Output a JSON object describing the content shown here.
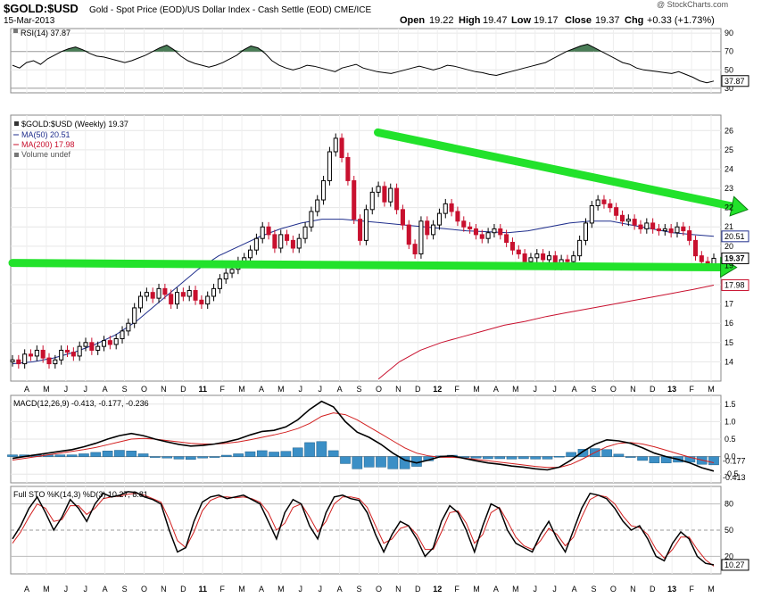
{
  "header": {
    "ticker": "$GOLD:$USD",
    "description": "Gold - Spot Price (EOD)/US Dollar Index - Cash Settle (EOD) CME/ICE",
    "date": "15-Mar-2013",
    "open_label": "Open",
    "open": "19.22",
    "high_label": "High",
    "high": "19.47",
    "low_label": "Low",
    "low": "19.17",
    "close_label": "Close",
    "close": "19.37",
    "chg_label": "Chg",
    "chg": "+0.33 (+1.73%)",
    "watermark": "@ StockCharts.com"
  },
  "colors": {
    "up": "#000000",
    "down": "#c8102e",
    "ma50": "#1f2e8c",
    "ma200": "#c8102e",
    "trend": "#22e22b",
    "rsi_fill": "#4a7d57",
    "macd_hist": "#3b8fc6",
    "sto_d": "#d21f1f"
  },
  "chart_data": [
    {
      "type": "line",
      "panel": "rsi",
      "legend": "RSI(14) 37.87",
      "current_label": "37.87",
      "y_ticks": [
        90,
        70,
        50,
        30
      ],
      "ylim": [
        25,
        95
      ],
      "values": [
        55,
        52,
        58,
        60,
        56,
        62,
        66,
        70,
        73,
        75,
        72,
        68,
        65,
        64,
        62,
        60,
        58,
        60,
        63,
        66,
        70,
        74,
        77,
        72,
        65,
        60,
        57,
        55,
        53,
        55,
        58,
        62,
        66,
        72,
        76,
        74,
        68,
        60,
        55,
        52,
        50,
        52,
        55,
        54,
        52,
        50,
        48,
        52,
        54,
        56,
        52,
        50,
        48,
        47,
        46,
        48,
        50,
        52,
        54,
        52,
        50,
        52,
        55,
        54,
        52,
        50,
        48,
        47,
        45,
        44,
        46,
        48,
        50,
        52,
        54,
        56,
        58,
        62,
        66,
        70,
        73,
        76,
        78,
        74,
        70,
        66,
        62,
        58,
        56,
        52,
        50,
        49,
        48,
        47,
        46,
        48,
        45,
        42,
        38,
        36,
        37.87
      ]
    },
    {
      "type": "candlestick",
      "panel": "price",
      "legend": [
        "$GOLD:$USD (Weekly) 19.37",
        "MA(50) 20.51",
        "MA(200) 17.98",
        "Volume undef"
      ],
      "y_ticks": [
        26,
        25,
        24,
        23,
        22,
        21,
        20,
        19,
        18,
        17,
        16,
        15,
        14
      ],
      "ylim": [
        13,
        26.8
      ],
      "axis_labels": {
        "ma50": "20.51",
        "ma200": "17.98",
        "close": "19.37"
      },
      "closes": [
        14.1,
        13.9,
        14.4,
        14.3,
        14.6,
        14.2,
        13.9,
        14.1,
        14.6,
        14.5,
        14.3,
        14.8,
        15.0,
        14.6,
        14.8,
        15.1,
        14.9,
        15.2,
        15.6,
        16.0,
        16.8,
        17.4,
        17.6,
        17.3,
        17.8,
        17.5,
        17.0,
        17.6,
        17.4,
        17.7,
        17.2,
        17.0,
        17.4,
        17.8,
        18.3,
        18.6,
        18.8,
        19.2,
        19.4,
        19.8,
        20.4,
        21.0,
        20.6,
        19.9,
        20.6,
        20.3,
        19.9,
        20.4,
        21.0,
        21.8,
        22.4,
        23.4,
        24.9,
        25.6,
        24.6,
        23.4,
        21.4,
        20.3,
        21.9,
        22.8,
        23.1,
        22.3,
        23.0,
        21.9,
        21.1,
        20.1,
        19.6,
        21.3,
        20.6,
        21.1,
        21.7,
        22.2,
        21.8,
        21.3,
        21.0,
        20.9,
        20.6,
        20.4,
        20.7,
        20.9,
        20.6,
        20.2,
        19.8,
        19.6,
        19.2,
        19.4,
        19.6,
        19.3,
        19.5,
        19.0,
        19.3,
        19.2,
        19.5,
        20.3,
        21.2,
        22.1,
        22.4,
        22.2,
        22.0,
        21.6,
        21.3,
        21.4,
        21.1,
        20.9,
        21.2,
        20.9,
        20.8,
        20.9,
        20.7,
        21.0,
        20.8,
        20.3,
        19.5,
        19.2,
        19.04,
        19.37
      ],
      "ma50": [
        13.9,
        14.0,
        14.2,
        14.5,
        14.9,
        15.4,
        16.1,
        17.0,
        17.9,
        18.8,
        19.5,
        20.0,
        20.5,
        20.9,
        21.2,
        21.4,
        21.4,
        21.3,
        21.2,
        21.1,
        21.0,
        20.9,
        20.8,
        20.75,
        20.7,
        20.8,
        21.0,
        21.2,
        21.3,
        21.3,
        21.1,
        20.9,
        20.7,
        20.6,
        20.51
      ],
      "ma200": [
        13.1,
        14.0,
        14.6,
        15.0,
        15.3,
        15.6,
        15.9,
        16.1,
        16.35,
        16.55,
        16.75,
        16.95,
        17.15,
        17.35,
        17.55,
        17.75,
        17.98
      ],
      "x_ticks": [
        "A",
        "M",
        "J",
        "J",
        "A",
        "S",
        "O",
        "N",
        "D",
        "11",
        "F",
        "M",
        "A",
        "M",
        "J",
        "J",
        "A",
        "S",
        "O",
        "N",
        "D",
        "12",
        "F",
        "M",
        "A",
        "M",
        "J",
        "J",
        "A",
        "S",
        "O",
        "N",
        "D",
        "13",
        "F",
        "M"
      ],
      "trendlines": [
        {
          "from": [
            0.497,
            25.9
          ],
          "to": [
            1.0,
            21.9
          ]
        },
        {
          "from": [
            0.0,
            19.13
          ],
          "to": [
            0.985,
            18.9
          ]
        }
      ]
    },
    {
      "type": "line",
      "panel": "macd",
      "legend": "MACD(12,26,9) -0.413, -0.177, -0.236",
      "y_ticks": [
        "1.5",
        "1.0",
        "0.5",
        "0.0",
        "-0.5"
      ],
      "ylim": [
        -0.75,
        1.75
      ],
      "labels": {
        "signal": "-0.177",
        "macd": "-0.413"
      },
      "macd": [
        -0.05,
        0.0,
        0.05,
        0.1,
        0.15,
        0.2,
        0.28,
        0.38,
        0.5,
        0.6,
        0.66,
        0.6,
        0.5,
        0.42,
        0.35,
        0.3,
        0.32,
        0.36,
        0.42,
        0.5,
        0.62,
        0.72,
        0.75,
        0.85,
        1.05,
        1.35,
        1.58,
        1.42,
        1.0,
        0.7,
        0.55,
        0.35,
        0.1,
        -0.1,
        -0.18,
        -0.1,
        0.0,
        0.02,
        -0.05,
        -0.12,
        -0.18,
        -0.22,
        -0.27,
        -0.3,
        -0.35,
        -0.38,
        -0.3,
        -0.1,
        0.15,
        0.35,
        0.48,
        0.45,
        0.38,
        0.25,
        0.1,
        0.0,
        -0.08,
        -0.18,
        -0.32,
        -0.413
      ],
      "signal": [
        -0.1,
        -0.05,
        0.0,
        0.05,
        0.1,
        0.15,
        0.2,
        0.26,
        0.34,
        0.42,
        0.5,
        0.52,
        0.5,
        0.46,
        0.42,
        0.38,
        0.36,
        0.36,
        0.38,
        0.42,
        0.48,
        0.55,
        0.62,
        0.7,
        0.8,
        0.95,
        1.15,
        1.25,
        1.2,
        1.05,
        0.85,
        0.65,
        0.45,
        0.25,
        0.1,
        0.02,
        -0.02,
        -0.02,
        -0.04,
        -0.08,
        -0.12,
        -0.16,
        -0.2,
        -0.24,
        -0.28,
        -0.31,
        -0.31,
        -0.22,
        -0.06,
        0.12,
        0.28,
        0.38,
        0.4,
        0.36,
        0.28,
        0.18,
        0.08,
        -0.02,
        -0.1,
        -0.177
      ],
      "histogram": [
        0.05,
        0.05,
        0.05,
        0.05,
        0.05,
        0.05,
        0.08,
        0.12,
        0.16,
        0.18,
        0.16,
        0.08,
        0.0,
        -0.04,
        -0.07,
        -0.08,
        -0.04,
        0.0,
        0.04,
        0.08,
        0.14,
        0.17,
        0.13,
        0.15,
        0.25,
        0.4,
        0.43,
        0.17,
        -0.2,
        -0.35,
        -0.3,
        -0.3,
        -0.35,
        -0.35,
        -0.28,
        -0.12,
        0.02,
        0.04,
        -0.01,
        -0.04,
        -0.06,
        -0.06,
        -0.07,
        -0.06,
        -0.07,
        -0.07,
        0.01,
        0.12,
        0.21,
        0.23,
        0.2,
        0.07,
        -0.02,
        -0.11,
        -0.18,
        -0.18,
        -0.16,
        -0.16,
        -0.22,
        -0.236
      ]
    },
    {
      "type": "line",
      "panel": "stochastic",
      "legend": "Full STO %K(14,3) %D(3) 10.27, 8.81",
      "y_ticks": [
        80,
        50,
        20
      ],
      "ylim": [
        0,
        100
      ],
      "labels": {
        "k": "10.27"
      },
      "k": [
        40,
        55,
        75,
        88,
        70,
        50,
        65,
        85,
        75,
        60,
        80,
        92,
        88,
        90,
        94,
        93,
        88,
        85,
        80,
        50,
        25,
        30,
        60,
        82,
        88,
        90,
        86,
        88,
        90,
        85,
        80,
        60,
        40,
        70,
        85,
        80,
        55,
        40,
        70,
        88,
        90,
        86,
        84,
        70,
        45,
        25,
        45,
        60,
        55,
        40,
        20,
        30,
        60,
        78,
        70,
        50,
        25,
        55,
        80,
        75,
        50,
        35,
        30,
        25,
        45,
        60,
        40,
        25,
        50,
        75,
        92,
        90,
        86,
        75,
        60,
        50,
        55,
        40,
        20,
        15,
        35,
        48,
        40,
        20,
        12,
        10.27
      ],
      "d": [
        35,
        48,
        65,
        80,
        75,
        60,
        62,
        78,
        78,
        68,
        75,
        86,
        88,
        89,
        91,
        92,
        90,
        86,
        82,
        62,
        38,
        30,
        48,
        72,
        84,
        88,
        88,
        87,
        88,
        86,
        82,
        70,
        50,
        58,
        76,
        80,
        65,
        48,
        60,
        80,
        88,
        88,
        86,
        76,
        55,
        35,
        40,
        52,
        55,
        45,
        28,
        28,
        48,
        70,
        72,
        58,
        35,
        45,
        70,
        76,
        60,
        42,
        32,
        28,
        38,
        52,
        45,
        32,
        42,
        65,
        85,
        90,
        88,
        80,
        66,
        55,
        53,
        45,
        28,
        18,
        28,
        42,
        42,
        28,
        16,
        8.81
      ],
      "x_ticks": [
        "A",
        "M",
        "J",
        "J",
        "A",
        "S",
        "O",
        "N",
        "D",
        "11",
        "F",
        "M",
        "A",
        "M",
        "J",
        "J",
        "A",
        "S",
        "O",
        "N",
        "D",
        "12",
        "F",
        "M",
        "A",
        "M",
        "J",
        "J",
        "A",
        "S",
        "O",
        "N",
        "D",
        "13",
        "F",
        "M"
      ]
    }
  ]
}
